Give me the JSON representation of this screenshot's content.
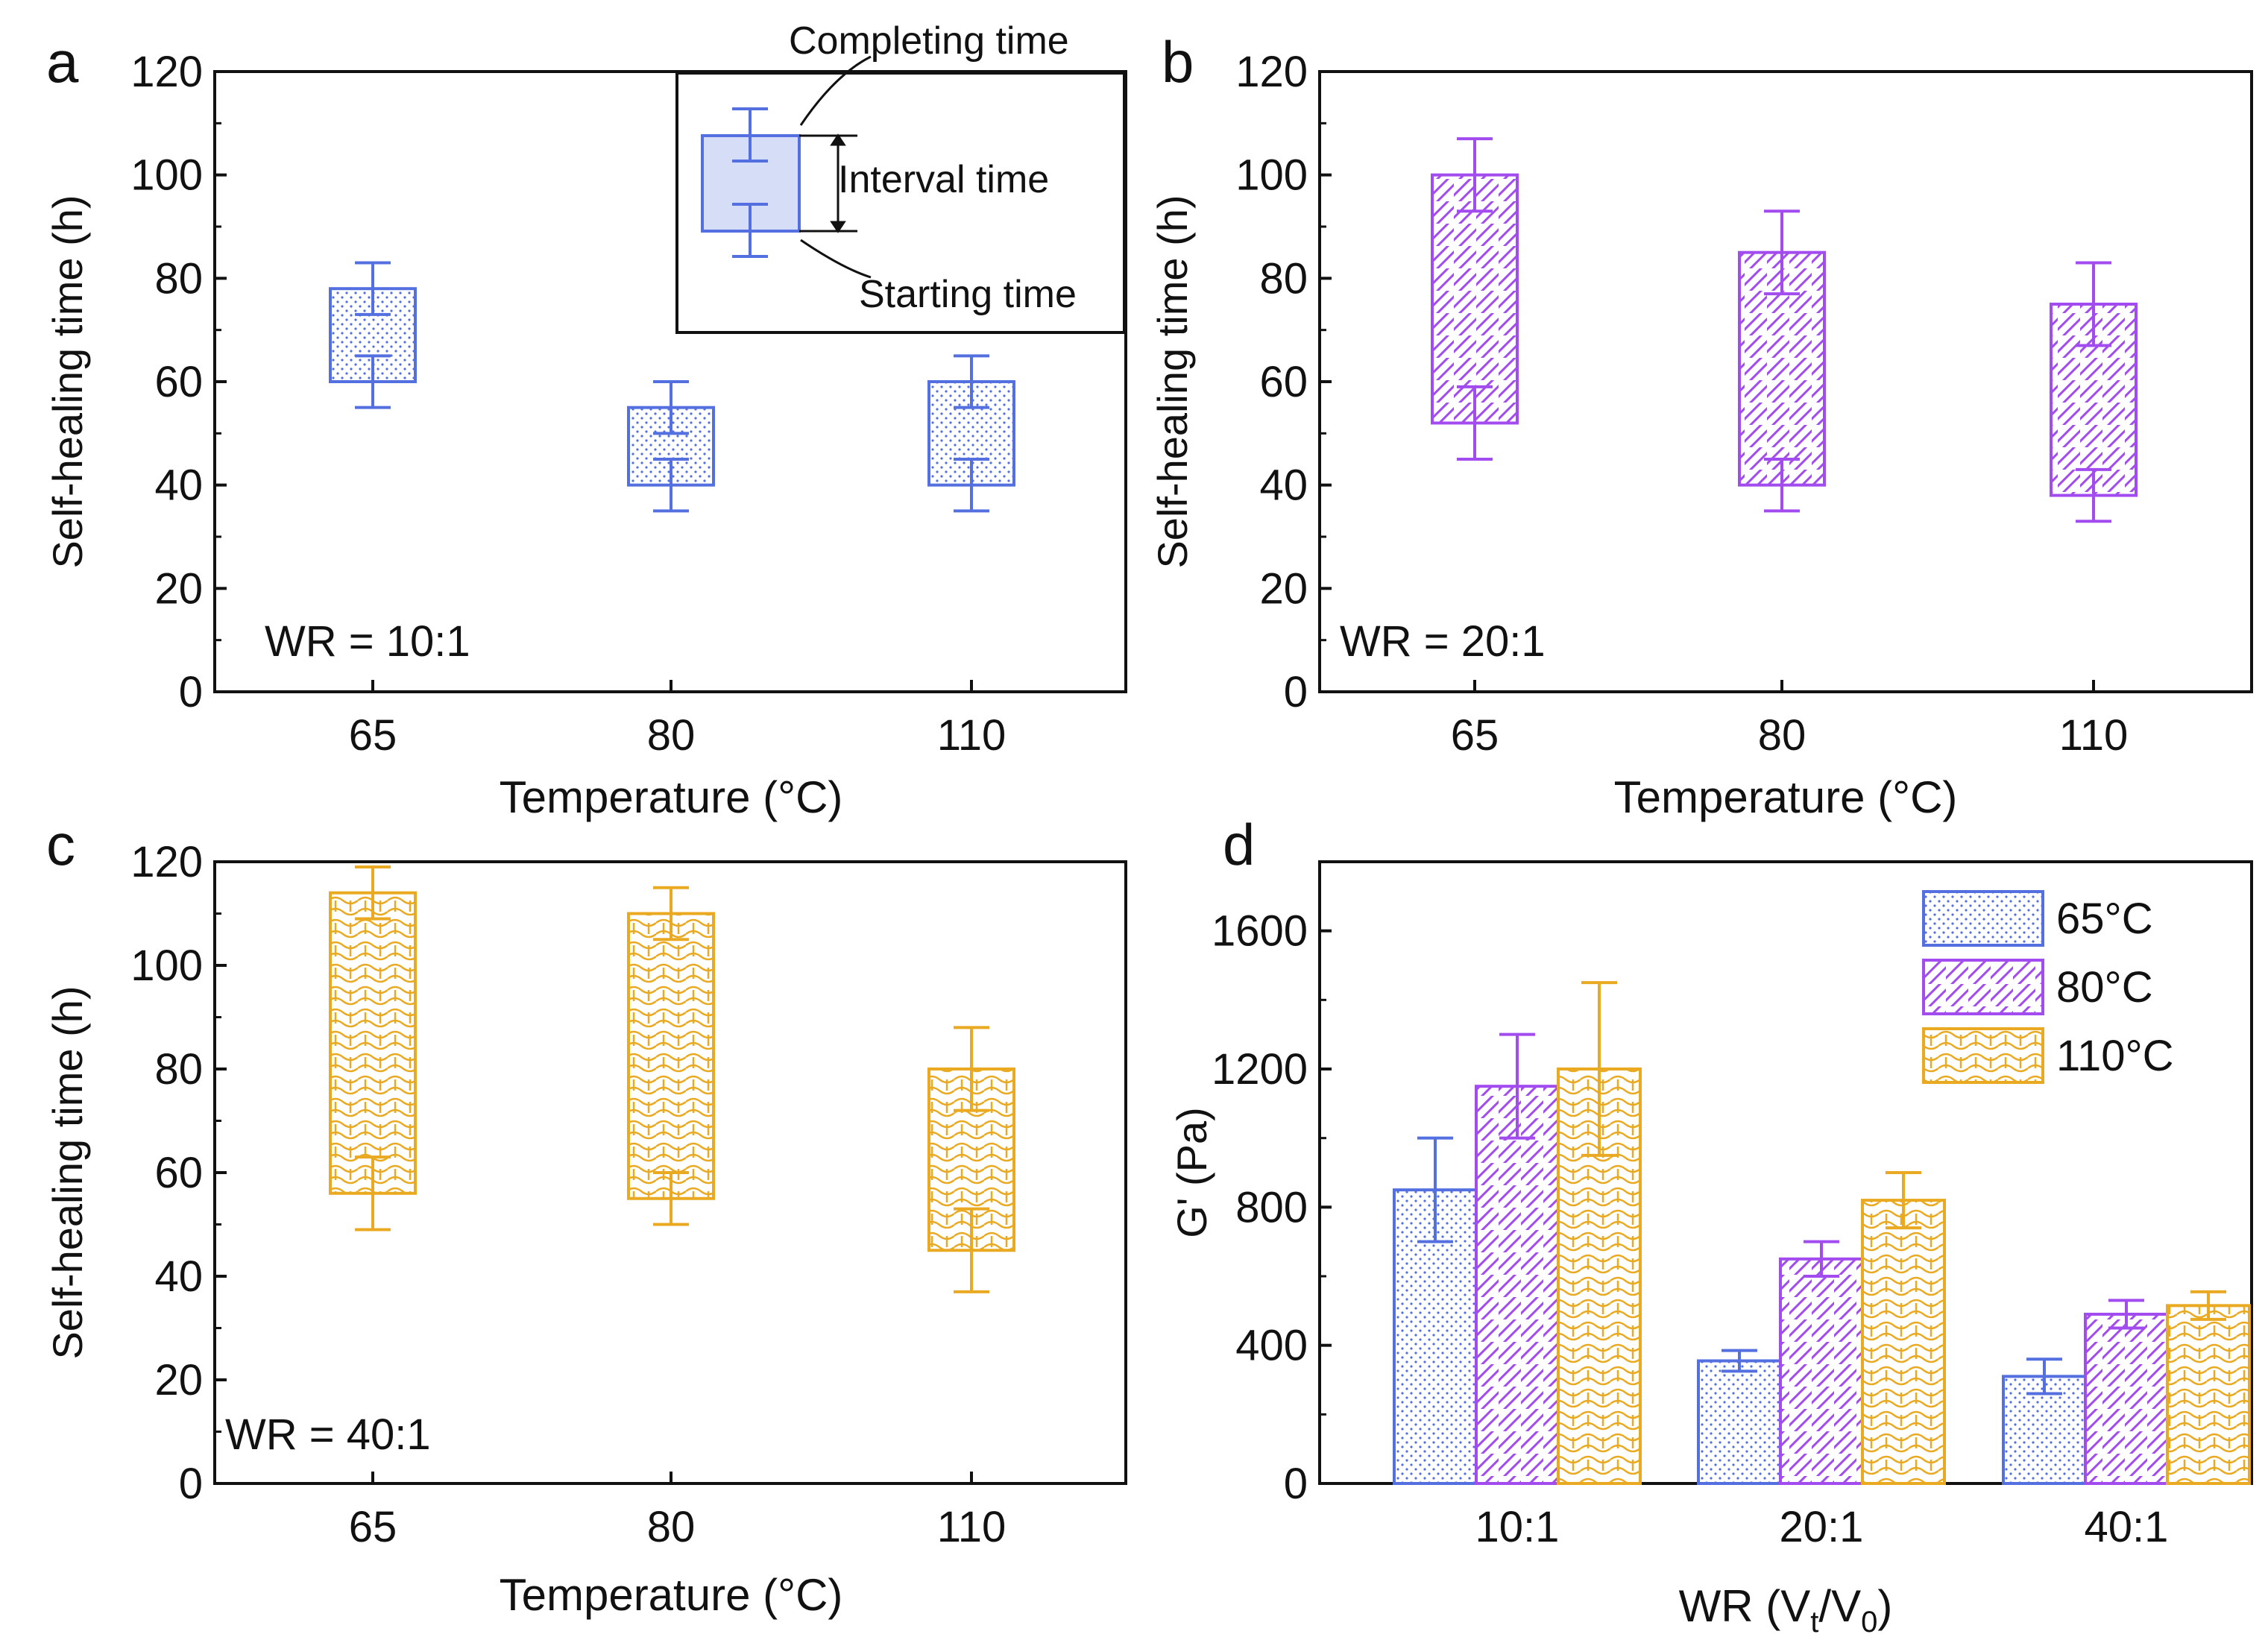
{
  "colors": {
    "t65": "#5470e0",
    "t65_fill": "#e8ecfb",
    "t80": "#a24cf0",
    "t80_fill": "#ffffff",
    "t110": "#e9aa22",
    "t110_fill": "#ffffff",
    "axis": "#111111"
  },
  "chart_data": [
    {
      "id": "a",
      "panel_label": "a",
      "type": "box",
      "xlabel": "Temperature (°C)",
      "ylabel": "Self-healing time (h)",
      "ylim": [
        0,
        120
      ],
      "yticks": [
        "0",
        "20",
        "40",
        "60",
        "80",
        "100",
        "120"
      ],
      "annotation": "WR = 10:1",
      "series_color": "t65",
      "pattern": "dots",
      "categories": [
        "65",
        "80",
        "110"
      ],
      "boxes": [
        {
          "start": 60,
          "complete": 78,
          "start_err": [
            55,
            65
          ],
          "complete_err": [
            73,
            83
          ]
        },
        {
          "start": 40,
          "complete": 55,
          "start_err": [
            35,
            45
          ],
          "complete_err": [
            50,
            60
          ]
        },
        {
          "start": 40,
          "complete": 60,
          "start_err": [
            35,
            45
          ],
          "complete_err": [
            55,
            65
          ]
        }
      ],
      "inset": {
        "completing": "Completing time",
        "interval": "Interval time",
        "starting": "Starting time"
      }
    },
    {
      "id": "b",
      "panel_label": "b",
      "type": "box",
      "xlabel": "Temperature (°C)",
      "ylabel": "Self-healing time (h)",
      "ylim": [
        0,
        120
      ],
      "yticks": [
        "0",
        "20",
        "40",
        "60",
        "80",
        "100",
        "120"
      ],
      "annotation": "WR = 20:1",
      "series_color": "t80",
      "pattern": "hatch",
      "categories": [
        "65",
        "80",
        "110"
      ],
      "boxes": [
        {
          "start": 52,
          "complete": 100,
          "start_err": [
            45,
            59
          ],
          "complete_err": [
            93,
            107
          ]
        },
        {
          "start": 40,
          "complete": 85,
          "start_err": [
            35,
            45
          ],
          "complete_err": [
            77,
            93
          ]
        },
        {
          "start": 38,
          "complete": 75,
          "start_err": [
            33,
            43
          ],
          "complete_err": [
            67,
            83
          ]
        }
      ]
    },
    {
      "id": "c",
      "panel_label": "c",
      "type": "box",
      "xlabel": "Temperature (°C)",
      "ylabel": "Self-healing time (h)",
      "ylim": [
        0,
        120
      ],
      "yticks": [
        "0",
        "20",
        "40",
        "60",
        "80",
        "100",
        "120"
      ],
      "annotation": "WR = 40:1",
      "series_color": "t110",
      "pattern": "wave",
      "categories": [
        "65",
        "80",
        "110"
      ],
      "boxes": [
        {
          "start": 56,
          "complete": 114,
          "start_err": [
            49,
            63
          ],
          "complete_err": [
            109,
            119
          ]
        },
        {
          "start": 55,
          "complete": 110,
          "start_err": [
            50,
            60
          ],
          "complete_err": [
            105,
            115
          ]
        },
        {
          "start": 45,
          "complete": 80,
          "start_err": [
            37,
            53
          ],
          "complete_err": [
            72,
            88
          ]
        }
      ]
    },
    {
      "id": "d",
      "panel_label": "d",
      "type": "bar",
      "xlabel": "WR (Vt/V0)",
      "ylabel": "G' (Pa)",
      "ylim": [
        0,
        1800
      ],
      "yticks": [
        "0",
        "400",
        "800",
        "1200",
        "1600"
      ],
      "categories": [
        "10:1",
        "20:1",
        "40:1"
      ],
      "series": [
        {
          "name": "65°C",
          "color": "t65",
          "pattern": "dots",
          "values": [
            850,
            355,
            310
          ],
          "errors": [
            150,
            30,
            50
          ]
        },
        {
          "name": "80°C",
          "color": "t80",
          "pattern": "hatch",
          "values": [
            1150,
            650,
            490
          ],
          "errors": [
            150,
            50,
            40
          ]
        },
        {
          "name": "110°C",
          "color": "t110",
          "pattern": "wave",
          "values": [
            1200,
            820,
            515
          ],
          "errors": [
            250,
            80,
            40
          ]
        }
      ],
      "legend_position": "top-right"
    }
  ]
}
